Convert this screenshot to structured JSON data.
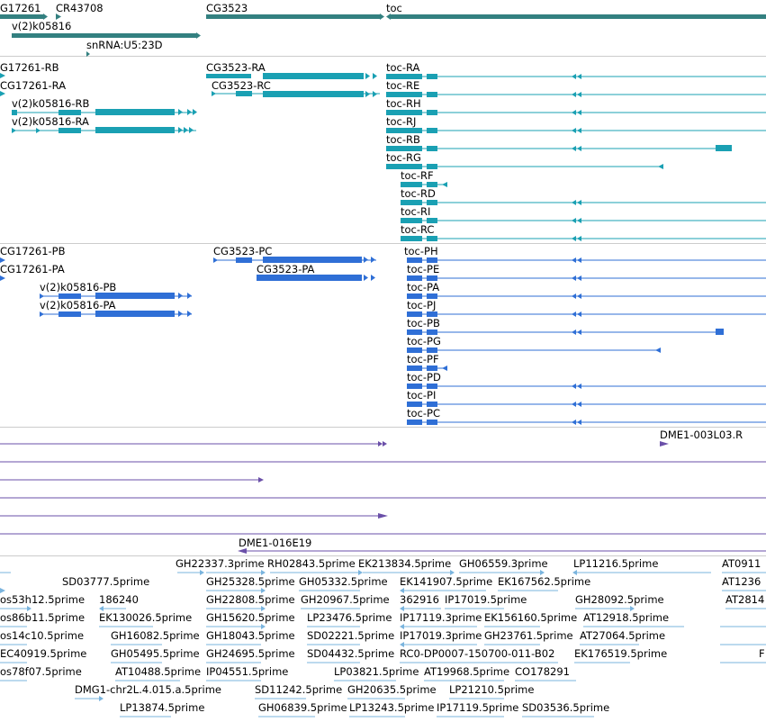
{
  "colors": {
    "gene": "#338080",
    "transcript_r": "#1aa0b3",
    "transcript_p": "#2f6fd6",
    "clone": "#6a4fa8",
    "est": "#7ab4de",
    "divider": "#cccccc"
  },
  "gene_labels": [
    "G17261",
    "CR43708",
    "CG3523",
    "toc",
    "v(2)k05816",
    "snRNA:U5:23D"
  ],
  "transcripts_r": [
    "G17261-RB",
    "CG17261-RA",
    "CG3523-RA",
    "CG3523-RC",
    "v(2)k05816-RB",
    "v(2)k05816-RA",
    "toc-RA",
    "toc-RE",
    "toc-RH",
    "toc-RJ",
    "toc-RB",
    "toc-RG",
    "toc-RF",
    "toc-RD",
    "toc-RI",
    "toc-RC"
  ],
  "transcripts_p": [
    "CG17261-PB",
    "CG17261-PA",
    "CG3523-PC",
    "CG3523-PA",
    "v(2)k05816-PB",
    "v(2)k05816-PA",
    "toc-PH",
    "toc-PE",
    "toc-PA",
    "toc-PJ",
    "toc-PB",
    "toc-PG",
    "toc-PF",
    "toc-PD",
    "toc-PI",
    "toc-PC"
  ],
  "clones": [
    "DME1-003L03.R",
    "DME1-016E19"
  ],
  "ests": [
    "GH22337.3prime",
    "RH02843.5prime",
    "EK213834.5prime",
    "GH06559.3prime",
    "LP11216.5prime",
    "AT0911",
    "SD03777.5prime",
    "GH25328.5prime",
    "GH05332.5prime",
    "EK141907.5prime",
    "EK167562.5prime",
    "AT1236",
    "os53h12.5prime",
    "186240",
    "GH22808.5prime",
    "GH20967.5prime",
    "362916",
    "IP17019.5prime",
    "GH28092.5prime",
    "AT2814",
    "os86b11.5prime",
    "EK130026.5prime",
    "GH15620.5prime",
    "LP23476.5prime",
    "IP17119.3prime",
    "EK156160.5prime",
    "AT12918.5prime",
    "os14c10.5prime",
    "GH16082.5prime",
    "GH18043.5prime",
    "SD02221.5prime",
    "IP17019.3prime",
    "GH23761.5prime",
    "AT27064.5prime",
    "EC40919.5prime",
    "GH05495.5prime",
    "GH24695.5prime",
    "SD04432.5prime",
    "RC0-DP0007-150700-011-B02",
    "EK176519.5prime",
    "F",
    "os78f07.5prime",
    "AT10488.5prime",
    "IP04551.5prime",
    "LP03821.5prime",
    "AT19968.5prime",
    "CO178291",
    "DMG1-chr2L.4.015.a.5prime",
    "SD11242.5prime",
    "GH20635.5prime",
    "LP21210.5prime",
    "LP13874.5prime",
    "GH06839.5prime",
    "LP13243.5prime",
    "IP17119.5prime",
    "SD03536.5prime"
  ]
}
